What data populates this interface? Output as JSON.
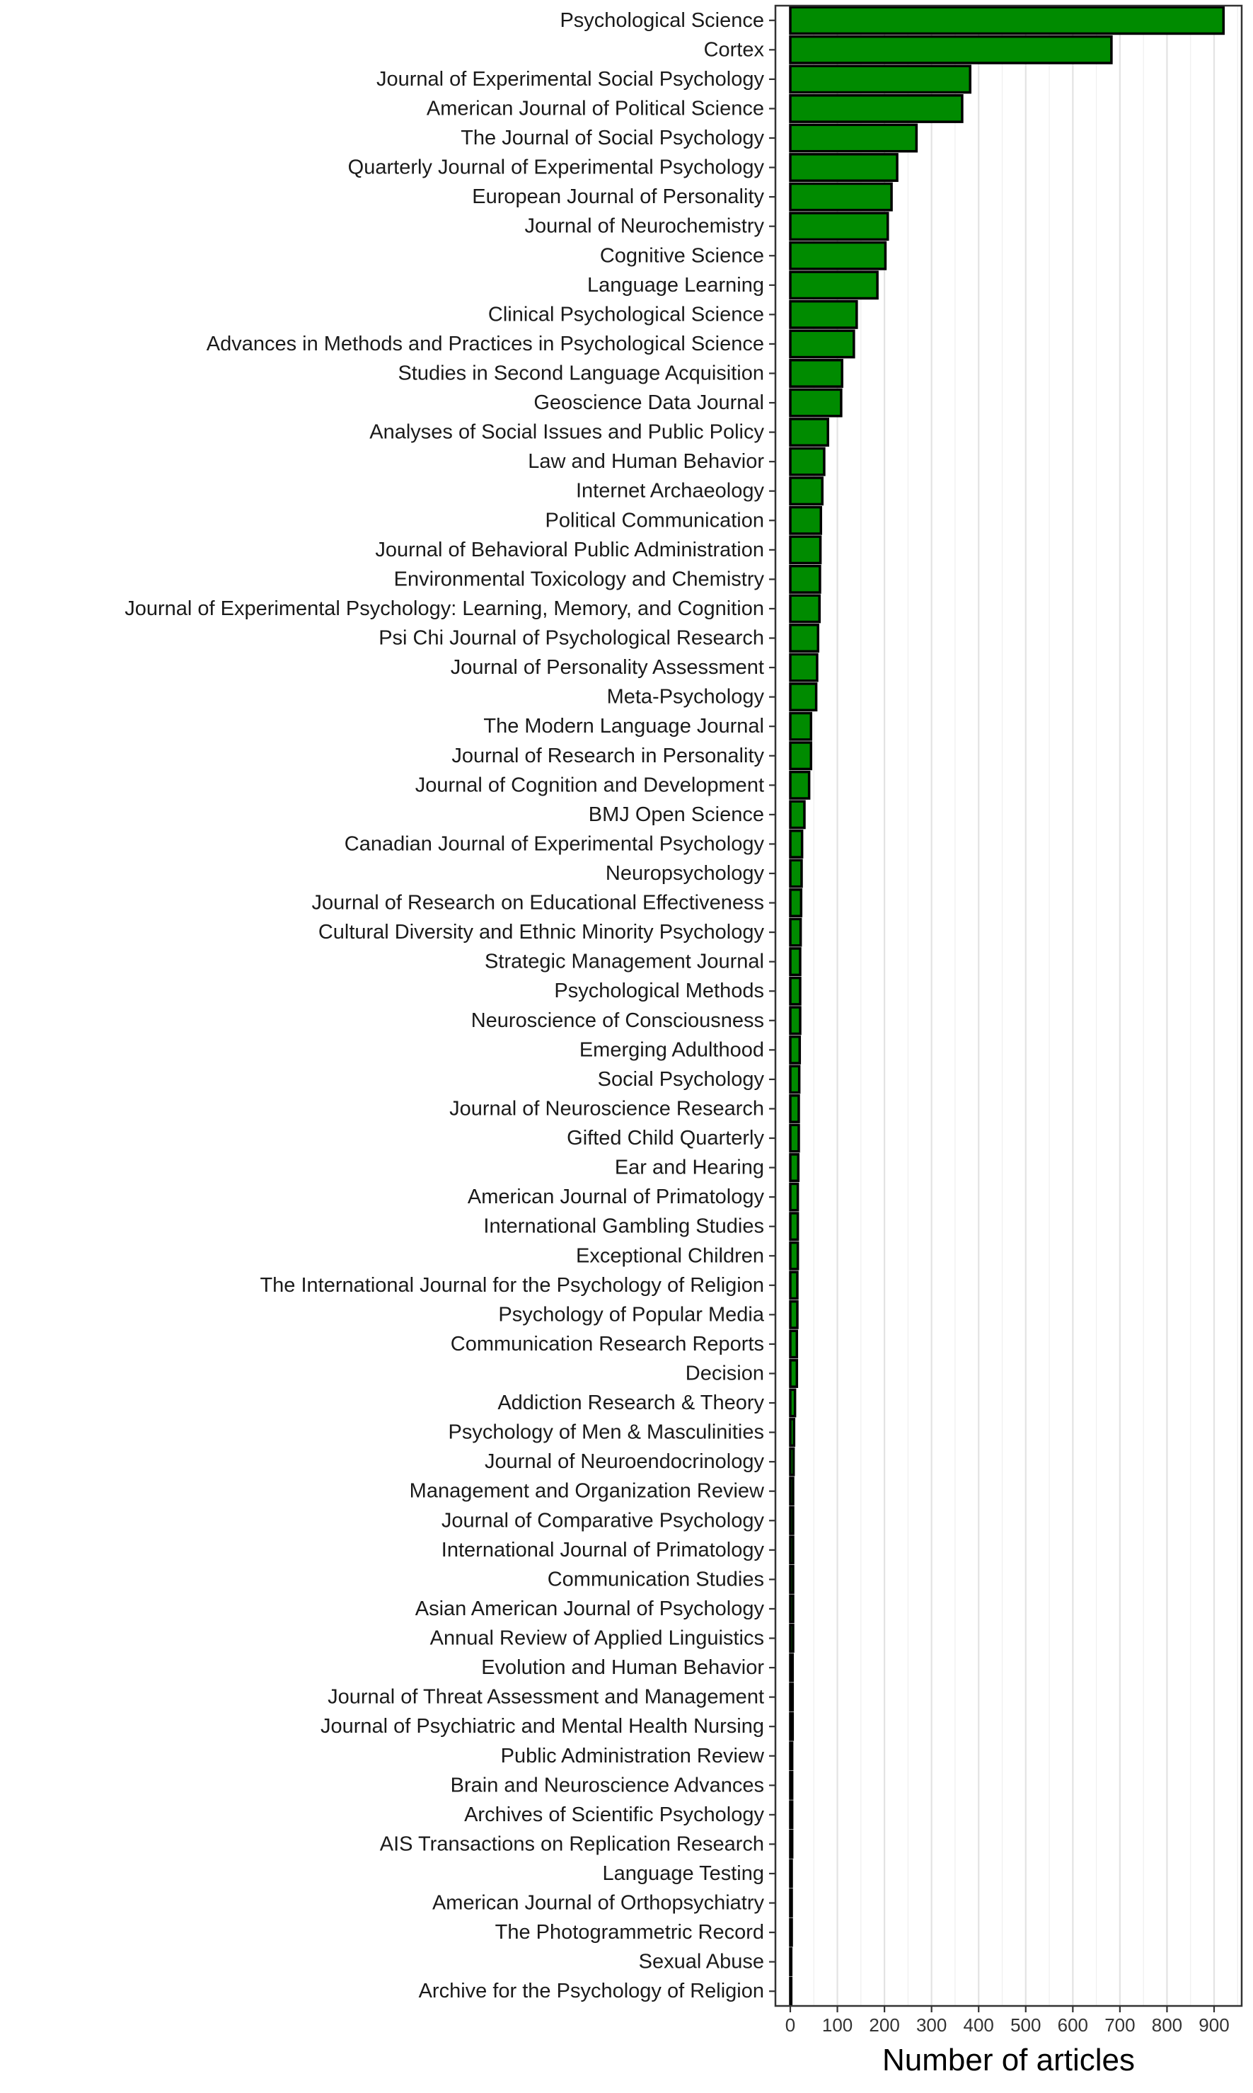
{
  "chart_data": {
    "type": "bar",
    "orientation": "horizontal",
    "title": "",
    "xlabel": "Number of articles",
    "ylabel": "",
    "xlim": [
      0,
      960
    ],
    "xticks": [
      0,
      100,
      200,
      300,
      400,
      500,
      600,
      700,
      800,
      900
    ],
    "grid": "vertical",
    "bar_color": "#008b00",
    "bar_edge_color": "#000000",
    "categories": [
      "Psychological Science",
      "Cortex",
      "Journal of Experimental Social Psychology",
      "American Journal of Political Science",
      "The Journal of Social Psychology",
      "Quarterly Journal of Experimental Psychology",
      "European Journal of Personality",
      "Journal of Neurochemistry",
      "Cognitive Science",
      "Language Learning",
      "Clinical Psychological Science",
      "Advances in Methods and Practices in Psychological Science",
      "Studies in Second Language Acquisition",
      "Geoscience Data Journal",
      "Analyses of Social Issues and Public Policy",
      "Law and Human Behavior",
      "Internet Archaeology",
      "Political Communication",
      "Journal of Behavioral Public Administration",
      "Environmental Toxicology and Chemistry",
      "Journal of Experimental Psychology: Learning, Memory, and Cognition",
      "Psi Chi Journal of Psychological Research",
      "Journal of Personality Assessment",
      "Meta-Psychology",
      "The Modern Language Journal",
      "Journal of Research in Personality",
      "Journal of Cognition and Development",
      "BMJ Open Science",
      "Canadian Journal of Experimental Psychology",
      "Neuropsychology",
      "Journal of Research on Educational Effectiveness",
      "Cultural Diversity and Ethnic Minority Psychology",
      "Strategic Management Journal",
      "Psychological Methods",
      "Neuroscience of Consciousness",
      "Emerging Adulthood",
      "Social Psychology",
      "Journal of Neuroscience Research",
      "Gifted Child Quarterly",
      "Ear and Hearing",
      "American Journal of Primatology",
      "International Gambling Studies",
      "Exceptional Children",
      "The International Journal for the Psychology of Religion",
      "Psychology of Popular Media",
      "Communication Research Reports",
      "Decision",
      "Addiction Research & Theory",
      "Psychology of Men & Masculinities",
      "Journal of Neuroendocrinology",
      "Management and Organization Review",
      "Journal of Comparative Psychology",
      "International Journal of Primatology",
      "Communication Studies",
      "Asian American Journal of Psychology",
      "Annual Review of Applied Linguistics",
      "Evolution and Human Behavior",
      "Journal of Threat Assessment and Management",
      "Journal of Psychiatric and Mental Health Nursing",
      "Public Administration Review",
      "Brain and Neuroscience Advances",
      "Archives of Scientific Psychology",
      "AIS Transactions on Replication Research",
      "Language Testing",
      "American Journal of Orthopsychiatry",
      "The Photogrammetric Record",
      "Sexual Abuse",
      "Archive for the Psychology of Religion"
    ],
    "values": [
      920,
      682,
      382,
      365,
      268,
      227,
      215,
      207,
      202,
      185,
      141,
      135,
      110,
      108,
      80,
      72,
      68,
      65,
      64,
      63,
      62,
      59,
      57,
      55,
      44,
      44,
      40,
      30,
      25,
      24,
      23,
      22,
      21,
      21,
      21,
      20,
      19,
      18,
      18,
      17,
      16,
      16,
      16,
      15,
      15,
      14,
      14,
      10,
      8,
      7,
      6,
      6,
      6,
      6,
      6,
      6,
      5,
      5,
      5,
      4,
      4,
      4,
      4,
      3,
      3,
      3,
      2,
      2
    ]
  }
}
